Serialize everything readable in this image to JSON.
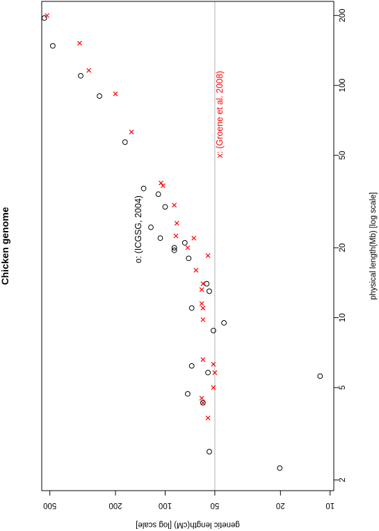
{
  "chart_data": {
    "type": "scatter",
    "title": "Chicken genome",
    "xlabel": "physical length(Mb) [log scale]",
    "ylabel": "genetic length(cM) [log scale]",
    "x_scale": "log",
    "y_scale": "log",
    "xlim": [
      1.8,
      230
    ],
    "ylim": [
      9.5,
      560
    ],
    "x_ticks": [
      2,
      5,
      10,
      20,
      50,
      100,
      200
    ],
    "y_ticks": [
      10,
      20,
      50,
      100,
      200,
      500
    ],
    "reference_line": {
      "y": 50,
      "color": "#bbbbbb"
    },
    "grid": false,
    "orientation": "rotated-90-clockwise",
    "annotations": [
      {
        "text": "o: (ICGSG, 2004)",
        "color": "#000000",
        "x": 24,
        "y": 140
      },
      {
        "text": "x: (Groene et al. 2008)",
        "color": "#ff0000",
        "x": 75,
        "y": 45
      }
    ],
    "series": [
      {
        "marker": "circle",
        "color": "#000000",
        "points": [
          [
            195,
            540
          ],
          [
            148,
            480
          ],
          [
            110,
            325
          ],
          [
            90,
            250
          ],
          [
            57,
            175
          ],
          [
            36,
            135
          ],
          [
            34,
            110
          ],
          [
            30,
            100
          ],
          [
            24.5,
            122
          ],
          [
            22,
            107
          ],
          [
            21,
            76
          ],
          [
            20,
            88
          ],
          [
            19.5,
            88
          ],
          [
            18,
            72
          ],
          [
            14,
            56
          ],
          [
            13,
            54
          ],
          [
            11,
            69
          ],
          [
            8.8,
            51
          ],
          [
            9.5,
            44
          ],
          [
            6.2,
            69
          ],
          [
            5.8,
            55
          ],
          [
            5.6,
            11.5
          ],
          [
            4.7,
            73
          ],
          [
            4.3,
            59
          ],
          [
            2.65,
            54
          ],
          [
            2.25,
            20.2
          ]
        ]
      },
      {
        "marker": "cross",
        "color": "#ff0000",
        "points": [
          [
            200,
            520
          ],
          [
            152,
            330
          ],
          [
            116,
            290
          ],
          [
            92,
            200
          ],
          [
            63,
            160
          ],
          [
            38,
            106
          ],
          [
            37,
            103
          ],
          [
            30.5,
            88
          ],
          [
            25.5,
            85
          ],
          [
            22.5,
            86
          ],
          [
            22,
            67
          ],
          [
            20,
            73
          ],
          [
            18.5,
            55
          ],
          [
            16,
            65
          ],
          [
            14,
            59
          ],
          [
            13.2,
            60
          ],
          [
            11.5,
            60
          ],
          [
            11,
            59
          ],
          [
            9.8,
            59
          ],
          [
            6.6,
            59
          ],
          [
            6.3,
            51
          ],
          [
            5.8,
            50
          ],
          [
            5.0,
            51
          ],
          [
            4.5,
            60
          ],
          [
            4.3,
            59
          ],
          [
            3.7,
            55
          ]
        ]
      }
    ]
  }
}
